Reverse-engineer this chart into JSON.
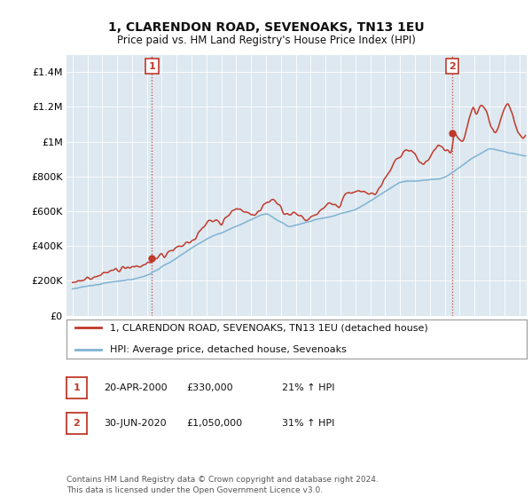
{
  "title1": "1, CLARENDON ROAD, SEVENOAKS, TN13 1EU",
  "title2": "Price paid vs. HM Land Registry's House Price Index (HPI)",
  "ylim": [
    0,
    1500000
  ],
  "yticks": [
    0,
    200000,
    400000,
    600000,
    800000,
    1000000,
    1200000,
    1400000
  ],
  "ytick_labels": [
    "£0",
    "£200K",
    "£400K",
    "£600K",
    "£800K",
    "£1M",
    "£1.2M",
    "£1.4M"
  ],
  "sale1_year": 2000.333,
  "sale1_price": 330000,
  "sale2_year": 2020.5,
  "sale2_price": 1050000,
  "legend_line1": "1, CLARENDON ROAD, SEVENOAKS, TN13 1EU (detached house)",
  "legend_line2": "HPI: Average price, detached house, Sevenoaks",
  "table_row1": [
    "1",
    "20-APR-2000",
    "£330,000",
    "21% ↑ HPI"
  ],
  "table_row2": [
    "2",
    "30-JUN-2020",
    "£1,050,000",
    "31% ↑ HPI"
  ],
  "footer": "Contains HM Land Registry data © Crown copyright and database right 2024.\nThis data is licensed under the Open Government Licence v3.0.",
  "color_red": "#c0392b",
  "color_blue": "#7fb3d3",
  "color_vline": "#c0392b",
  "bg_color": "#ffffff",
  "chart_bg": "#dde8f0",
  "grid_color": "#ffffff"
}
